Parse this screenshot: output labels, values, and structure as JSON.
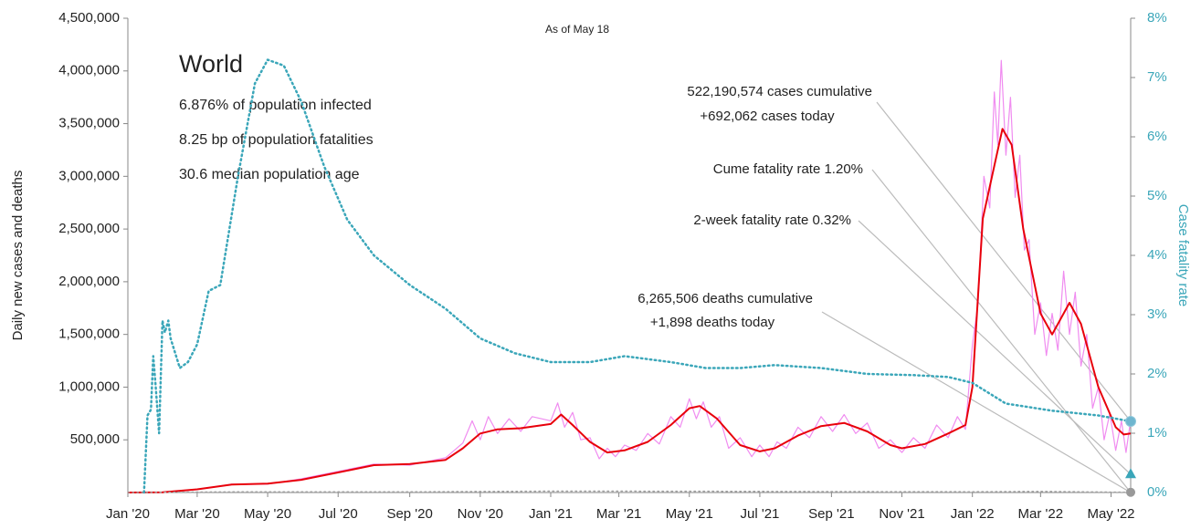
{
  "chart_data": {
    "type": "line",
    "subtitle": "As of May 18",
    "ylabel": "Daily new cases and deaths",
    "y2label": "Case fatality rate",
    "panel": {
      "title": "World",
      "lines": [
        "6.876% of population infected",
        "8.25 bp of population fatalities",
        "30.6 median population age"
      ]
    },
    "annotations": {
      "cases": [
        "522,190,574 cases cumulative",
        "+692,062 cases today"
      ],
      "cume": "Cume fatality rate 1.20%",
      "two_week": "2-week fatality rate 0.32%",
      "deaths": [
        "6,265,506 deaths cumulative",
        "+1,898 deaths today"
      ]
    },
    "cume_fatality_rate": 1.2,
    "two_week_fatality_rate": 0.32,
    "xlim": [
      0,
      868
    ],
    "xticks": [
      {
        "value": 0,
        "label": "Jan '20"
      },
      {
        "value": 60,
        "label": "Mar '20"
      },
      {
        "value": 121,
        "label": "May '20"
      },
      {
        "value": 182,
        "label": "Jul '20"
      },
      {
        "value": 244,
        "label": "Sep '20"
      },
      {
        "value": 305,
        "label": "Nov '20"
      },
      {
        "value": 366,
        "label": "Jan '21"
      },
      {
        "value": 425,
        "label": "Mar '21"
      },
      {
        "value": 486,
        "label": "May '21"
      },
      {
        "value": 547,
        "label": "Jul '21"
      },
      {
        "value": 609,
        "label": "Sep '21"
      },
      {
        "value": 670,
        "label": "Nov '21"
      },
      {
        "value": 731,
        "label": "Jan '22"
      },
      {
        "value": 790,
        "label": "Mar '22"
      },
      {
        "value": 851,
        "label": "May '22"
      }
    ],
    "ylim": [
      0,
      4500000
    ],
    "yticks": [
      {
        "value": 500000,
        "label": "500,000"
      },
      {
        "value": 1000000,
        "label": "1,000,000"
      },
      {
        "value": 1500000,
        "label": "1,500,000"
      },
      {
        "value": 2000000,
        "label": "2,000,000"
      },
      {
        "value": 2500000,
        "label": "2,500,000"
      },
      {
        "value": 3000000,
        "label": "3,000,000"
      },
      {
        "value": 3500000,
        "label": "3,500,000"
      },
      {
        "value": 4000000,
        "label": "4,000,000"
      },
      {
        "value": 4500000,
        "label": "4,500,000"
      }
    ],
    "y2lim": [
      0,
      8
    ],
    "y2ticks": [
      {
        "value": 0,
        "label": "0%"
      },
      {
        "value": 1,
        "label": "1%"
      },
      {
        "value": 2,
        "label": "2%"
      },
      {
        "value": 3,
        "label": "3%"
      },
      {
        "value": 4,
        "label": "4%"
      },
      {
        "value": 5,
        "label": "5%"
      },
      {
        "value": 6,
        "label": "6%"
      },
      {
        "value": 7,
        "label": "7%"
      },
      {
        "value": 8,
        "label": "8%"
      }
    ],
    "series": [
      {
        "color": "#f08cf0",
        "width": 1.2,
        "dash": false,
        "x": [
          0,
          30,
          60,
          90,
          121,
          150,
          182,
          213,
          244,
          275,
          290,
          298,
          305,
          312,
          320,
          330,
          340,
          350,
          366,
          372,
          378,
          385,
          392,
          400,
          408,
          415,
          422,
          430,
          440,
          450,
          460,
          470,
          478,
          486,
          492,
          498,
          505,
          512,
          520,
          530,
          540,
          547,
          555,
          562,
          570,
          580,
          590,
          600,
          610,
          620,
          630,
          640,
          650,
          660,
          670,
          680,
          690,
          700,
          710,
          718,
          725,
          731,
          736,
          741,
          746,
          750,
          753,
          756,
          760,
          764,
          768,
          772,
          776,
          780,
          785,
          790,
          795,
          800,
          805,
          810,
          815,
          820,
          825,
          830,
          835,
          840,
          845,
          850,
          855,
          860,
          864,
          868
        ],
        "values": [
          0,
          2000,
          28000,
          80000,
          80000,
          130000,
          200000,
          270000,
          260000,
          330000,
          470000,
          680000,
          500000,
          720000,
          560000,
          700000,
          580000,
          720000,
          680000,
          850000,
          620000,
          760000,
          500000,
          520000,
          320000,
          420000,
          340000,
          450000,
          400000,
          560000,
          460000,
          720000,
          620000,
          890000,
          700000,
          860000,
          620000,
          720000,
          420000,
          520000,
          340000,
          450000,
          340000,
          480000,
          420000,
          620000,
          520000,
          720000,
          580000,
          740000,
          560000,
          660000,
          420000,
          500000,
          380000,
          520000,
          420000,
          640000,
          520000,
          720000,
          600000,
          1400000,
          1800000,
          3000000,
          2700000,
          3800000,
          3300000,
          4100000,
          3200000,
          3750000,
          2800000,
          3200000,
          2300000,
          2400000,
          1500000,
          1800000,
          1300000,
          1700000,
          1350000,
          2100000,
          1500000,
          1900000,
          1200000,
          1500000,
          800000,
          1000000,
          500000,
          750000,
          400000,
          680000,
          380000,
          690000
        ]
      },
      {
        "color": "#e8000b",
        "width": 2,
        "dash": false,
        "x": [
          0,
          30,
          60,
          90,
          121,
          150,
          182,
          213,
          244,
          275,
          290,
          305,
          320,
          340,
          366,
          375,
          385,
          400,
          415,
          430,
          450,
          470,
          486,
          495,
          510,
          530,
          547,
          560,
          580,
          600,
          620,
          640,
          660,
          670,
          690,
          710,
          725,
          731,
          740,
          750,
          757,
          765,
          775,
          790,
          800,
          815,
          825,
          840,
          855,
          862,
          868
        ],
        "values": [
          0,
          2000,
          30000,
          75000,
          85000,
          120000,
          190000,
          260000,
          270000,
          310000,
          420000,
          560000,
          600000,
          610000,
          650000,
          740000,
          640000,
          480000,
          380000,
          400000,
          480000,
          640000,
          800000,
          820000,
          700000,
          450000,
          390000,
          420000,
          540000,
          630000,
          660000,
          580000,
          450000,
          420000,
          460000,
          560000,
          640000,
          1000000,
          2600000,
          3100000,
          3450000,
          3300000,
          2500000,
          1700000,
          1500000,
          1800000,
          1600000,
          1000000,
          620000,
          550000,
          560000
        ]
      },
      {
        "color": "#a0a0a0",
        "width": 1.5,
        "dash": true,
        "x": [
          0,
          90,
          121,
          244,
          366,
          486,
          609,
          731,
          790,
          868
        ],
        "values": [
          0,
          6000,
          6000,
          6000,
          13000,
          12000,
          9000,
          7000,
          10000,
          2000
        ]
      },
      {
        "color": "#3aa6b9",
        "width": 2.5,
        "dash": true,
        "axis": "y2",
        "x": [
          14,
          17,
          20,
          22,
          24,
          27,
          30,
          32,
          35,
          37,
          45,
          52,
          60,
          70,
          80,
          95,
          110,
          121,
          135,
          150,
          170,
          190,
          213,
          244,
          275,
          305,
          335,
          366,
          400,
          430,
          470,
          500,
          530,
          560,
          600,
          640,
          680,
          710,
          731,
          760,
          800,
          840,
          868
        ],
        "values": [
          0,
          1.3,
          1.4,
          2.3,
          1.8,
          1.0,
          2.9,
          2.7,
          2.9,
          2.6,
          2.1,
          2.2,
          2.5,
          3.4,
          3.5,
          5.3,
          6.9,
          7.3,
          7.2,
          6.6,
          5.5,
          4.6,
          4.0,
          3.5,
          3.1,
          2.6,
          2.35,
          2.2,
          2.2,
          2.3,
          2.2,
          2.1,
          2.1,
          2.15,
          2.1,
          2.0,
          1.98,
          1.95,
          1.85,
          1.5,
          1.38,
          1.3,
          1.2
        ]
      }
    ]
  }
}
